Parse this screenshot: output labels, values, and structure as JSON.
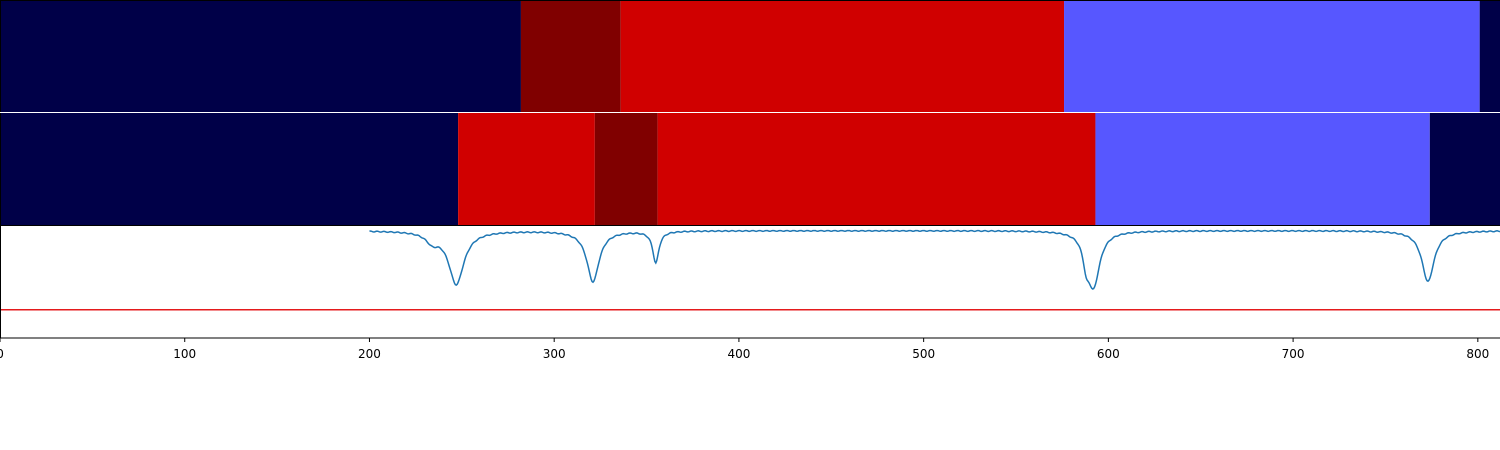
{
  "chart_data": [
    {
      "type": "segment-bar",
      "panel": "top",
      "xlim": [
        0,
        812
      ],
      "segments": [
        {
          "start": 0,
          "end": 282,
          "color": "#000048"
        },
        {
          "start": 282,
          "end": 336,
          "color": "#800000"
        },
        {
          "start": 336,
          "end": 576,
          "color": "#d00000"
        },
        {
          "start": 576,
          "end": 801,
          "color": "#5757ff"
        },
        {
          "start": 801,
          "end": 812,
          "color": "#000048"
        }
      ]
    },
    {
      "type": "segment-bar",
      "panel": "middle",
      "xlim": [
        0,
        812
      ],
      "segments": [
        {
          "start": 0,
          "end": 248,
          "color": "#000048"
        },
        {
          "start": 248,
          "end": 322,
          "color": "#d00000"
        },
        {
          "start": 322,
          "end": 356,
          "color": "#800000"
        },
        {
          "start": 356,
          "end": 593,
          "color": "#d00000"
        },
        {
          "start": 593,
          "end": 774,
          "color": "#5757ff"
        },
        {
          "start": 774,
          "end": 812,
          "color": "#000048"
        }
      ]
    },
    {
      "type": "line",
      "panel": "bottom",
      "xlim": [
        0,
        812
      ],
      "ylim": [
        -0.95,
        0.05
      ],
      "threshold": -0.7,
      "threshold_color": "#e41a1c",
      "line_color": "#1f77b4",
      "x_ticks": [
        0,
        100,
        200,
        300,
        400,
        500,
        600,
        700,
        800
      ],
      "x_tick_labels": [
        "0",
        "100",
        "200",
        "300",
        "400",
        "500",
        "600",
        "700",
        "800"
      ],
      "dips": [
        {
          "center": 247,
          "depth": -0.47,
          "width": 5
        },
        {
          "center": 321,
          "depth": -0.45,
          "width": 4
        },
        {
          "center": 355,
          "depth": -0.28,
          "width": 2
        },
        {
          "center": 592,
          "depth": -0.48,
          "width": 4
        },
        {
          "center": 773,
          "depth": -0.45,
          "width": 4
        }
      ],
      "shoulders": [
        {
          "center": 234,
          "depth": -0.08,
          "width": 4
        },
        {
          "center": 588,
          "depth": -0.18,
          "width": 2
        }
      ]
    }
  ]
}
